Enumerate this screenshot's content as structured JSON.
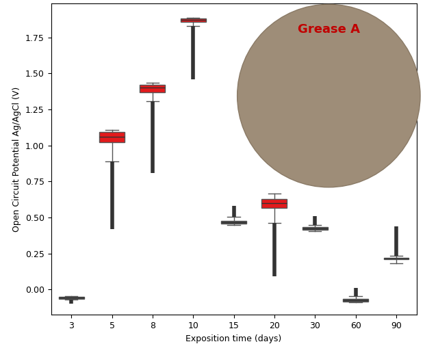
{
  "chart_data": {
    "type": "box",
    "x_label": "Exposition time (days)",
    "y_label": "Open Circuit Potential Ag/AgCl (V)",
    "annotation": "Grease A",
    "categories": [
      "3",
      "5",
      "8",
      "10",
      "15",
      "20",
      "30",
      "60",
      "90"
    ],
    "boxes": [
      {
        "whislo": -0.07,
        "q1": -0.065,
        "median": -0.057,
        "q3": -0.05,
        "whishi": -0.045,
        "outliers": [
          -0.1,
          -0.07
        ]
      },
      {
        "whislo": 0.89,
        "q1": 1.02,
        "median": 1.06,
        "q3": 1.095,
        "whishi": 1.105,
        "outliers": [
          0.42,
          0.89
        ]
      },
      {
        "whislo": 1.305,
        "q1": 1.37,
        "median": 1.4,
        "q3": 1.42,
        "whishi": 1.435,
        "outliers": [
          0.81,
          1.305
        ]
      },
      {
        "whislo": 1.83,
        "q1": 1.855,
        "median": 1.87,
        "q3": 1.88,
        "whishi": 1.885,
        "outliers": [
          1.46,
          1.83
        ]
      },
      {
        "whislo": 0.45,
        "q1": 0.455,
        "median": 0.465,
        "q3": 0.475,
        "whishi": 0.505,
        "outliers": [
          0.505,
          0.58
        ]
      },
      {
        "whislo": 0.46,
        "q1": 0.565,
        "median": 0.6,
        "q3": 0.63,
        "whishi": 0.665,
        "outliers": [
          0.09,
          0.46
        ]
      },
      {
        "whislo": 0.405,
        "q1": 0.415,
        "median": 0.425,
        "q3": 0.435,
        "whishi": 0.45,
        "outliers": [
          0.45,
          0.51
        ]
      },
      {
        "whislo": -0.09,
        "q1": -0.085,
        "median": -0.075,
        "q3": -0.065,
        "whishi": -0.045,
        "outliers": [
          -0.045,
          0.01
        ]
      },
      {
        "whislo": 0.18,
        "q1": 0.21,
        "median": 0.215,
        "q3": 0.22,
        "whishi": 0.235,
        "outliers": [
          0.235,
          0.44
        ]
      }
    ],
    "colors": [
      "#444444",
      "#e31a1c",
      "#e31a1c",
      "#e31a1c",
      "#444444",
      "#e31a1c",
      "#444444",
      "#444444",
      "#444444"
    ],
    "ylim": [
      -0.175,
      1.985
    ],
    "yticks": [
      {
        "value": 0,
        "label": "0.00"
      },
      {
        "value": 0.25,
        "label": "0.25"
      },
      {
        "value": 0.5,
        "label": "0.50"
      },
      {
        "value": 0.75,
        "label": "0.75"
      },
      {
        "value": 1.0,
        "label": "1.00"
      },
      {
        "value": 1.25,
        "label": "1.25"
      },
      {
        "value": 1.5,
        "label": "1.50"
      },
      {
        "value": 1.75,
        "label": "1.75"
      }
    ],
    "grid": false
  }
}
